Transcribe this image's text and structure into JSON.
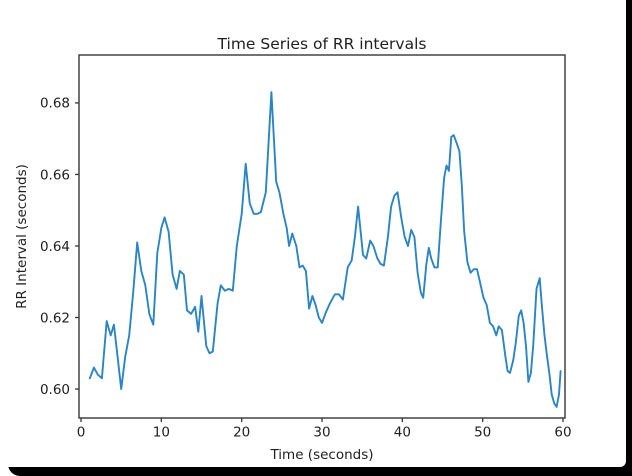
{
  "window": {
    "frame_color": "#000000",
    "figure_bg": "#ffffff"
  },
  "chart": {
    "colors": {
      "line": "#2b85c4",
      "axis": "#363636",
      "text": "#1f1f1f"
    }
  },
  "chart_data": {
    "type": "line",
    "title": "Time Series of RR intervals",
    "xlabel": "Time (seconds)",
    "ylabel": "RR Interval (seconds)",
    "xlim": [
      -0.25,
      60.25
    ],
    "ylim": [
      0.5919,
      0.6934
    ],
    "xticks": [
      0,
      10,
      20,
      30,
      40,
      50,
      60
    ],
    "xticklabels": [
      "0",
      "10",
      "20",
      "30",
      "40",
      "50",
      "60"
    ],
    "yticks": [
      0.6,
      0.62,
      0.64,
      0.66,
      0.68
    ],
    "yticklabels": [
      "0.60",
      "0.62",
      "0.64",
      "0.66",
      "0.68"
    ],
    "grid": false,
    "legend": null,
    "series": [
      {
        "name": "RR intervals",
        "x": [
          1.1,
          1.6,
          2.1,
          2.6,
          3.2,
          3.7,
          4.1,
          4.6,
          5.0,
          5.5,
          6.0,
          6.5,
          7.0,
          7.5,
          8.0,
          8.5,
          9.0,
          9.5,
          10.0,
          10.4,
          10.9,
          11.4,
          11.9,
          12.3,
          12.8,
          13.2,
          13.7,
          14.2,
          14.6,
          15.0,
          15.6,
          16.0,
          16.4,
          17.0,
          17.4,
          17.9,
          18.4,
          18.9,
          19.4,
          20.0,
          20.5,
          21.0,
          21.5,
          22.0,
          22.4,
          23.0,
          23.7,
          24.3,
          24.7,
          25.2,
          25.6,
          25.9,
          26.3,
          26.8,
          27.2,
          27.6,
          28.0,
          28.4,
          28.8,
          29.2,
          29.6,
          30.0,
          30.5,
          31.0,
          31.6,
          32.1,
          32.6,
          33.2,
          33.7,
          34.1,
          34.5,
          35.1,
          35.5,
          36.0,
          36.4,
          36.9,
          37.3,
          37.7,
          38.2,
          38.6,
          39.0,
          39.4,
          39.9,
          40.3,
          40.7,
          41.1,
          41.5,
          41.9,
          42.3,
          42.6,
          43.0,
          43.3,
          43.6,
          44.0,
          44.4,
          44.8,
          45.2,
          45.5,
          45.8,
          46.1,
          46.4,
          46.8,
          47.1,
          47.4,
          47.7,
          48.1,
          48.5,
          48.9,
          49.3,
          49.7,
          50.1,
          50.5,
          50.9,
          51.3,
          51.7,
          52.0,
          52.4,
          52.8,
          53.1,
          53.4,
          53.8,
          54.1,
          54.5,
          54.8,
          55.1,
          55.4,
          55.7,
          56.0,
          56.3,
          56.7,
          57.1,
          57.4,
          57.7,
          58.0,
          58.3,
          58.6,
          58.9,
          59.2,
          59.5,
          59.7
        ],
        "y": [
          0.603,
          0.606,
          0.604,
          0.603,
          0.619,
          0.615,
          0.618,
          0.608,
          0.6,
          0.609,
          0.615,
          0.627,
          0.641,
          0.633,
          0.629,
          0.621,
          0.618,
          0.638,
          0.645,
          0.648,
          0.644,
          0.632,
          0.628,
          0.633,
          0.632,
          0.622,
          0.621,
          0.623,
          0.616,
          0.626,
          0.612,
          0.61,
          0.6105,
          0.624,
          0.629,
          0.6275,
          0.628,
          0.6275,
          0.64,
          0.649,
          0.663,
          0.652,
          0.649,
          0.649,
          0.6495,
          0.655,
          0.683,
          0.658,
          0.655,
          0.649,
          0.645,
          0.64,
          0.6435,
          0.64,
          0.634,
          0.6345,
          0.633,
          0.6225,
          0.626,
          0.6235,
          0.62,
          0.6185,
          0.6215,
          0.624,
          0.6265,
          0.6265,
          0.625,
          0.634,
          0.636,
          0.6425,
          0.651,
          0.6375,
          0.6365,
          0.6415,
          0.64,
          0.6365,
          0.635,
          0.6345,
          0.6425,
          0.651,
          0.654,
          0.655,
          0.6475,
          0.6425,
          0.64,
          0.6445,
          0.6425,
          0.6325,
          0.627,
          0.6255,
          0.635,
          0.6395,
          0.6365,
          0.634,
          0.634,
          0.647,
          0.659,
          0.6625,
          0.661,
          0.6705,
          0.671,
          0.6685,
          0.6665,
          0.657,
          0.644,
          0.6355,
          0.6325,
          0.6335,
          0.6335,
          0.6295,
          0.6255,
          0.6235,
          0.6185,
          0.6175,
          0.615,
          0.6175,
          0.6165,
          0.6095,
          0.605,
          0.6045,
          0.608,
          0.6125,
          0.6205,
          0.622,
          0.6185,
          0.612,
          0.602,
          0.6045,
          0.6125,
          0.628,
          0.631,
          0.6225,
          0.615,
          0.6095,
          0.6045,
          0.5985,
          0.596,
          0.595,
          0.5985,
          0.605
        ]
      }
    ]
  }
}
